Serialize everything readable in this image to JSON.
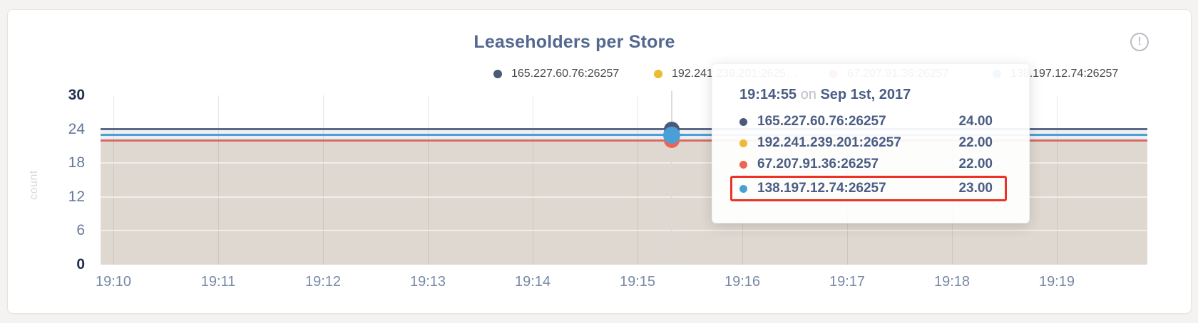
{
  "card": {
    "title": "Leaseholders per Store",
    "title_color": "#53688f",
    "info_icon": "exclamation-circle-icon",
    "info_glyph": "!"
  },
  "legend": {
    "items": [
      {
        "label": "165.227.60.76:26257"
      },
      {
        "label": "192.241.239.201:2625…"
      },
      {
        "label": "67.207.91.36:26257"
      },
      {
        "label": "138.197.12.74:26257"
      }
    ]
  },
  "tooltip": {
    "time": "19:14:55",
    "conjunction": "on",
    "date": "Sep 1st, 2017",
    "rows": [
      {
        "label": "165.227.60.76:26257",
        "value": "24.00"
      },
      {
        "label": "192.241.239.201:26257",
        "value": "22.00"
      },
      {
        "label": "67.207.91.36:26257",
        "value": "22.00"
      },
      {
        "label": "138.197.12.74:26257",
        "value": "23.00"
      }
    ],
    "highlighted_row": 3,
    "highlight_color": "#ee3124"
  },
  "chart_data": {
    "type": "line",
    "title": "Leaseholders per Store",
    "xlabel": "",
    "ylabel": "count",
    "ylim": [
      0,
      30
    ],
    "yticks": [
      0,
      6,
      12,
      18,
      24,
      30
    ],
    "ytick_labels": [
      "30",
      "24",
      "18",
      "12",
      "6",
      "0"
    ],
    "ygrid": [
      18,
      12,
      6
    ],
    "xticks": [
      "19:10",
      "19:11",
      "19:12",
      "19:13",
      "19:14",
      "19:15",
      "19:16",
      "19:17",
      "19:18",
      "19:19"
    ],
    "grid": true,
    "legend_position": "top",
    "hover_time": "19:14:55",
    "hover_date": "Sep 1st, 2017",
    "series": [
      {
        "name": "165.227.60.76:26257",
        "value": 24,
        "values_note": "constant 24 across 19:10-19:20",
        "dot_color": "#4a5a78",
        "line_color": "#5a6a88"
      },
      {
        "name": "192.241.239.201:26257",
        "value": 22,
        "values_note": "constant 22 across 19:10-19:20 (hidden under red line)",
        "dot_color": "#edbb33",
        "line_color": "#e4b32e"
      },
      {
        "name": "67.207.91.36:26257",
        "value": 22,
        "values_note": "constant 22 across 19:10-19:20",
        "dot_color": "#ee6257",
        "line_color": "#d96a61"
      },
      {
        "name": "138.197.12.74:26257",
        "value": 23,
        "values_note": "constant 23 across 19:10-19:20",
        "dot_color": "#4aa0d6",
        "line_color": "#4f9fd0"
      }
    ],
    "area_overlap_colors": [
      "rgba(100,120,150,0.10)",
      "rgba(80,140,200,0.14)",
      "rgba(150,125,100,0.30)"
    ]
  }
}
